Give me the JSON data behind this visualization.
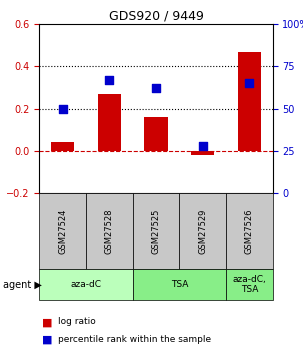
{
  "title": "GDS920 / 9449",
  "samples": [
    "GSM27524",
    "GSM27528",
    "GSM27525",
    "GSM27529",
    "GSM27526"
  ],
  "log_ratios": [
    0.04,
    0.27,
    0.16,
    -0.02,
    0.47
  ],
  "percentile_ranks": [
    50,
    67,
    62,
    28,
    65
  ],
  "bar_color": "#cc0000",
  "dot_color": "#0000cc",
  "ylim_left": [
    -0.2,
    0.6
  ],
  "ylim_right": [
    0,
    100
  ],
  "yticks_left": [
    -0.2,
    0.0,
    0.2,
    0.4,
    0.6
  ],
  "yticks_right": [
    0,
    25,
    50,
    75,
    100
  ],
  "agent_groups": [
    {
      "label": "aza-dC",
      "samples": [
        0,
        1
      ],
      "color": "#bbffbb"
    },
    {
      "label": "TSA",
      "samples": [
        2,
        3
      ],
      "color": "#88ee88"
    },
    {
      "label": "aza-dC,\nTSA",
      "samples": [
        4
      ],
      "color": "#88ee88"
    }
  ],
  "hline_y": 0,
  "hline_color": "#cc0000",
  "hline_style": "--",
  "dotted_lines": [
    0.2,
    0.4
  ],
  "dotted_color": "black",
  "dotted_style": ":",
  "background_plot": "#ffffff",
  "background_sample_row": "#c8c8c8",
  "bar_width": 0.5,
  "legend_log_label": "log ratio",
  "legend_pct_label": "percentile rank within the sample"
}
